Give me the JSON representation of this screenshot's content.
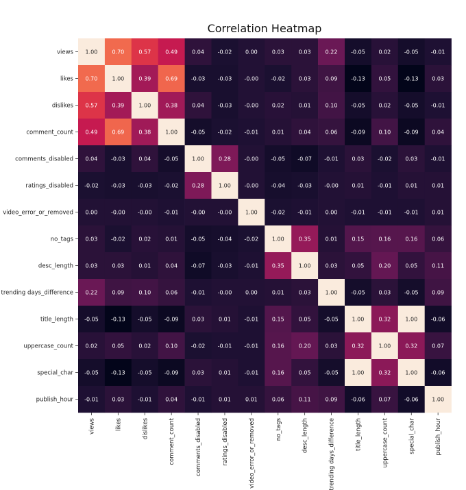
{
  "chart_data": {
    "type": "heatmap",
    "title": "Correlation Heatmap",
    "xlabel": "",
    "ylabel": "",
    "labels": [
      "views",
      "likes",
      "dislikes",
      "comment_count",
      "comments_disabled",
      "ratings_disabled",
      "video_error_or_removed",
      "no_tags",
      "desc_length",
      "trending days_difference",
      "title_length",
      "uppercase_count",
      "special_char",
      "publish_hour"
    ],
    "matrix": [
      [
        "1.00",
        "0.70",
        "0.57",
        "0.49",
        "0.04",
        "-0.02",
        "0.00",
        "0.03",
        "0.03",
        "0.22",
        "-0.05",
        "0.02",
        "-0.05",
        "-0.01"
      ],
      [
        "0.70",
        "1.00",
        "0.39",
        "0.69",
        "-0.03",
        "-0.03",
        "-0.00",
        "-0.02",
        "0.03",
        "0.09",
        "-0.13",
        "0.05",
        "-0.13",
        "0.03"
      ],
      [
        "0.57",
        "0.39",
        "1.00",
        "0.38",
        "0.04",
        "-0.03",
        "-0.00",
        "0.02",
        "0.01",
        "0.10",
        "-0.05",
        "0.02",
        "-0.05",
        "-0.01"
      ],
      [
        "0.49",
        "0.69",
        "0.38",
        "1.00",
        "-0.05",
        "-0.02",
        "-0.01",
        "0.01",
        "0.04",
        "0.06",
        "-0.09",
        "0.10",
        "-0.09",
        "0.04"
      ],
      [
        "0.04",
        "-0.03",
        "0.04",
        "-0.05",
        "1.00",
        "0.28",
        "-0.00",
        "-0.05",
        "-0.07",
        "-0.01",
        "0.03",
        "-0.02",
        "0.03",
        "-0.01"
      ],
      [
        "-0.02",
        "-0.03",
        "-0.03",
        "-0.02",
        "0.28",
        "1.00",
        "-0.00",
        "-0.04",
        "-0.03",
        "-0.00",
        "0.01",
        "-0.01",
        "0.01",
        "0.01"
      ],
      [
        "0.00",
        "-0.00",
        "-0.00",
        "-0.01",
        "-0.00",
        "-0.00",
        "1.00",
        "-0.02",
        "-0.01",
        "0.00",
        "-0.01",
        "-0.01",
        "-0.01",
        "0.01"
      ],
      [
        "0.03",
        "-0.02",
        "0.02",
        "0.01",
        "-0.05",
        "-0.04",
        "-0.02",
        "1.00",
        "0.35",
        "0.01",
        "0.15",
        "0.16",
        "0.16",
        "0.06"
      ],
      [
        "0.03",
        "0.03",
        "0.01",
        "0.04",
        "-0.07",
        "-0.03",
        "-0.01",
        "0.35",
        "1.00",
        "0.03",
        "0.05",
        "0.20",
        "0.05",
        "0.11"
      ],
      [
        "0.22",
        "0.09",
        "0.10",
        "0.06",
        "-0.01",
        "-0.00",
        "0.00",
        "0.01",
        "0.03",
        "1.00",
        "-0.05",
        "0.03",
        "-0.05",
        "0.09"
      ],
      [
        "-0.05",
        "-0.13",
        "-0.05",
        "-0.09",
        "0.03",
        "0.01",
        "-0.01",
        "0.15",
        "0.05",
        "-0.05",
        "1.00",
        "0.32",
        "1.00",
        "-0.06"
      ],
      [
        "0.02",
        "0.05",
        "0.02",
        "0.10",
        "-0.02",
        "-0.01",
        "-0.01",
        "0.16",
        "0.20",
        "0.03",
        "0.32",
        "1.00",
        "0.32",
        "0.07"
      ],
      [
        "-0.05",
        "-0.13",
        "-0.05",
        "-0.09",
        "0.03",
        "0.01",
        "-0.01",
        "0.16",
        "0.05",
        "-0.05",
        "1.00",
        "0.32",
        "1.00",
        "-0.06"
      ],
      [
        "-0.01",
        "0.03",
        "-0.01",
        "0.04",
        "-0.01",
        "0.01",
        "0.01",
        "0.06",
        "0.11",
        "0.09",
        "-0.06",
        "0.07",
        "-0.06",
        "1.00"
      ]
    ],
    "value_range": [
      -0.13,
      1.0
    ],
    "colormap": "rocket",
    "colorbar": false,
    "grid": false,
    "legend": "none"
  }
}
